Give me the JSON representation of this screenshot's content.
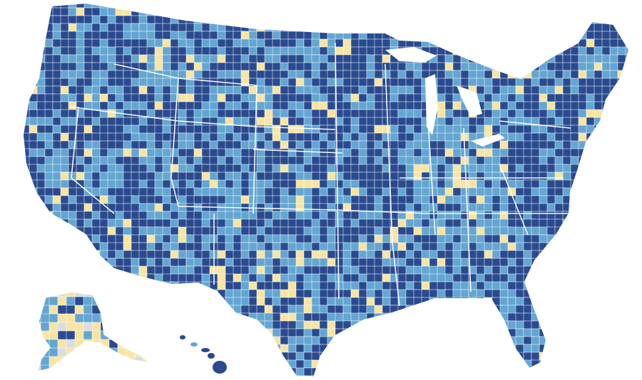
{
  "map": {
    "kind": "us-county-choropleth",
    "regions_shown": [
      "contiguous-us",
      "alaska",
      "hawaii"
    ],
    "category_colors": {
      "dark": "#2a4a8f",
      "medium": "#63a6d2",
      "light": "#f8e4a3",
      "no_data": "#d8dde3"
    },
    "border_color": "#ffffff",
    "background": "#ffffff"
  }
}
